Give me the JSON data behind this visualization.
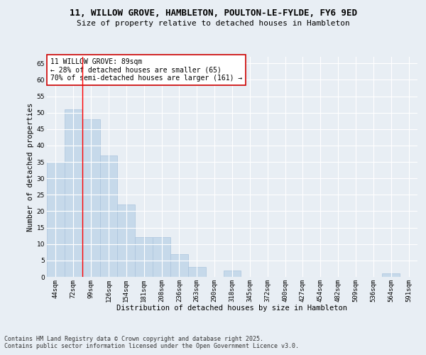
{
  "title1": "11, WILLOW GROVE, HAMBLETON, POULTON-LE-FYLDE, FY6 9ED",
  "title2": "Size of property relative to detached houses in Hambleton",
  "xlabel": "Distribution of detached houses by size in Hambleton",
  "ylabel": "Number of detached properties",
  "categories": [
    "44sqm",
    "72sqm",
    "99sqm",
    "126sqm",
    "154sqm",
    "181sqm",
    "208sqm",
    "236sqm",
    "263sqm",
    "290sqm",
    "318sqm",
    "345sqm",
    "372sqm",
    "400sqm",
    "427sqm",
    "454sqm",
    "482sqm",
    "509sqm",
    "536sqm",
    "564sqm",
    "591sqm"
  ],
  "values": [
    35,
    51,
    48,
    37,
    22,
    12,
    12,
    7,
    3,
    0,
    2,
    0,
    0,
    0,
    0,
    0,
    0,
    0,
    0,
    1,
    0
  ],
  "bar_color": "#c6d9ea",
  "bar_edge_color": "#aac4dd",
  "bar_width": 1.0,
  "ylim": [
    0,
    67
  ],
  "yticks": [
    0,
    5,
    10,
    15,
    20,
    25,
    30,
    35,
    40,
    45,
    50,
    55,
    60,
    65
  ],
  "red_line_x": 1.5,
  "annotation_text": "11 WILLOW GROVE: 89sqm\n← 28% of detached houses are smaller (65)\n70% of semi-detached houses are larger (161) →",
  "annotation_box_color": "#ffffff",
  "annotation_box_edge": "#cc0000",
  "footer1": "Contains HM Land Registry data © Crown copyright and database right 2025.",
  "footer2": "Contains public sector information licensed under the Open Government Licence v3.0.",
  "bg_color": "#e8eef4",
  "grid_color": "#ffffff",
  "title1_fontsize": 9,
  "title2_fontsize": 8,
  "axis_fontsize": 7.5,
  "tick_fontsize": 6.5,
  "annotation_fontsize": 7,
  "footer_fontsize": 6
}
